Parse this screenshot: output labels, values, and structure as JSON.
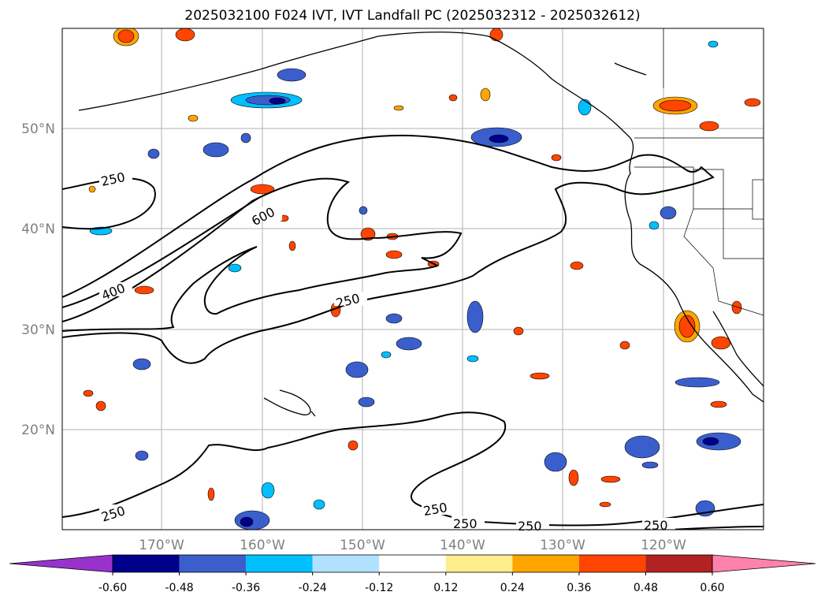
{
  "title": "2025032100 F024 IVT, IVT Landfall PC (2025032312 - 2025032612)",
  "map": {
    "lon_range": [
      -180,
      -110
    ],
    "lat_range": [
      10,
      60
    ],
    "lat_labels": [
      {
        "lat": 50,
        "label": "50°N"
      },
      {
        "lat": 40,
        "label": "40°N"
      },
      {
        "lat": 30,
        "label": "30°N"
      },
      {
        "lat": 20,
        "label": "20°N"
      }
    ],
    "lon_labels": [
      {
        "lon": -170,
        "label": "170°W"
      },
      {
        "lon": -160,
        "label": "160°W"
      },
      {
        "lon": -150,
        "label": "150°W"
      },
      {
        "lon": -140,
        "label": "140°W"
      },
      {
        "lon": -130,
        "label": "130°W"
      },
      {
        "lon": -120,
        "label": "120°W"
      }
    ],
    "gridlines": true
  },
  "ivt_contour_labels": [
    "250",
    "600",
    "400",
    "250",
    "250",
    "250",
    "250",
    "250",
    "250"
  ],
  "colorbar": {
    "ticks": [
      "-0.60",
      "-0.48",
      "-0.36",
      "-0.24",
      "-0.12",
      "0.12",
      "0.24",
      "0.36",
      "0.48",
      "0.60"
    ],
    "colors": [
      "#9932cc",
      "#00008b",
      "#3a5fcd",
      "#00bfff",
      "#b0e2ff",
      "#ffffff",
      "#ffec8b",
      "#ffa500",
      "#ff4500",
      "#b22222",
      "#ff82ab"
    ],
    "extend": "both"
  }
}
